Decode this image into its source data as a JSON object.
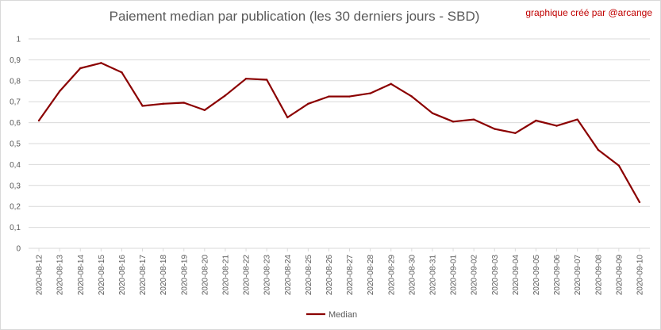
{
  "header": {
    "title": "Paiement median par publication (les 30 derniers jours - SBD)",
    "credit": "graphique créé par @arcange"
  },
  "colors": {
    "series": "#8b0000",
    "grid": "#d9d9d9",
    "axis_text": "#595959",
    "credit": "#c00000"
  },
  "chart_data": {
    "type": "line",
    "title": "Paiement median par publication (les 30 derniers jours - SBD)",
    "xlabel": "",
    "ylabel": "",
    "ylim": [
      0,
      1
    ],
    "yticks": [
      "0",
      "0,1",
      "0,2",
      "0,3",
      "0,4",
      "0,5",
      "0,6",
      "0,7",
      "0,8",
      "0,9",
      "1"
    ],
    "grid": true,
    "legend_position": "bottom",
    "x": [
      "2020-08-12",
      "2020-08-13",
      "2020-08-14",
      "2020-08-15",
      "2020-08-16",
      "2020-08-17",
      "2020-08-18",
      "2020-08-19",
      "2020-08-20",
      "2020-08-21",
      "2020-08-22",
      "2020-08-23",
      "2020-08-24",
      "2020-08-25",
      "2020-08-26",
      "2020-08-27",
      "2020-08-28",
      "2020-08-29",
      "2020-08-30",
      "2020-08-31",
      "2020-09-01",
      "2020-09-02",
      "2020-09-03",
      "2020-09-04",
      "2020-09-05",
      "2020-09-06",
      "2020-09-07",
      "2020-09-08",
      "2020-09-09",
      "2020-09-10"
    ],
    "series": [
      {
        "name": "Median",
        "values": [
          0.61,
          0.75,
          0.86,
          0.885,
          0.84,
          0.68,
          0.69,
          0.695,
          0.66,
          0.73,
          0.81,
          0.805,
          0.625,
          0.69,
          0.725,
          0.725,
          0.74,
          0.785,
          0.725,
          0.645,
          0.605,
          0.615,
          0.57,
          0.55,
          0.61,
          0.585,
          0.615,
          0.47,
          0.395,
          0.22
        ]
      }
    ]
  }
}
